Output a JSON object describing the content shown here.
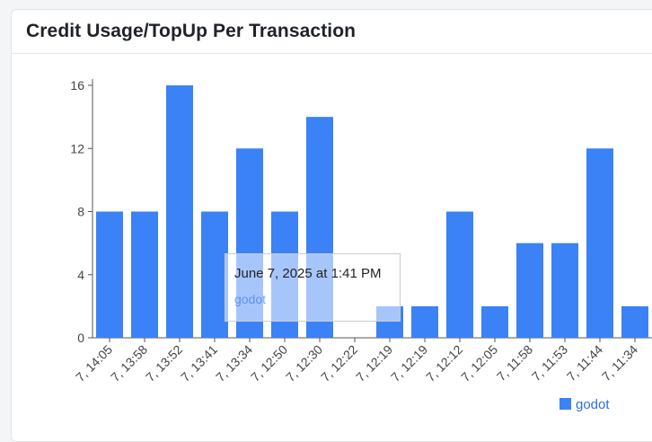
{
  "card": {
    "title": "Credit Usage/TopUp Per Transaction"
  },
  "tooltip": {
    "title": "June 7, 2025 at 1:41 PM",
    "series": "godot"
  },
  "colors": {
    "bar": "#3b82f6",
    "axis": "#555555",
    "legend_text": "#2f6fe0"
  },
  "chart_data": {
    "type": "bar",
    "title": "Credit Usage/TopUp Per Transaction",
    "categories": [
      "7, 14:05",
      "7, 13:58",
      "7, 13:52",
      "7, 13:41",
      "7, 13:34",
      "7, 12:50",
      "7, 12:30",
      "7, 12:22",
      "7, 12:19",
      "7, 12:19",
      "7, 12:12",
      "7, 12:05",
      "7, 11:58",
      "7, 11:53",
      "7, 11:44",
      "7, 11:34"
    ],
    "series": [
      {
        "name": "godot",
        "values": [
          8,
          8,
          16,
          8,
          12,
          8,
          14,
          0,
          2,
          2,
          8,
          2,
          6,
          6,
          12,
          2
        ]
      }
    ],
    "y_ticks": [
      "0",
      "4",
      "8",
      "12",
      "16"
    ],
    "ylim": [
      0,
      16
    ],
    "grid": false,
    "legend_position": "bottom-right"
  }
}
